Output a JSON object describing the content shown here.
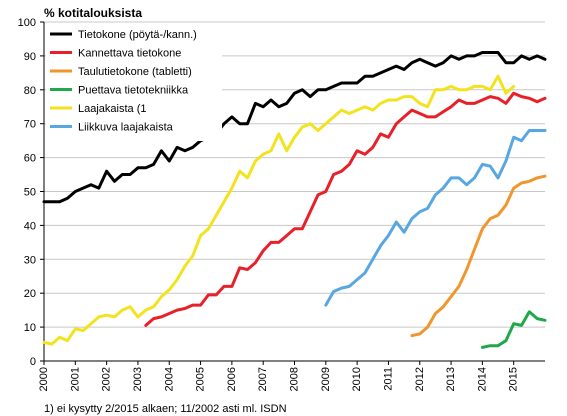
{
  "chart_data": {
    "type": "line",
    "title": "",
    "ylabel": "% kotitalouksista",
    "xlabel": "",
    "ylim": [
      0,
      100
    ],
    "yticks": [
      0,
      10,
      20,
      30,
      40,
      50,
      60,
      70,
      80,
      90,
      100
    ],
    "xlim": [
      2000,
      2016
    ],
    "xticks": [
      "2000",
      "2001",
      "2002",
      "2003",
      "2004",
      "2005",
      "2006",
      "2007",
      "2008",
      "2009",
      "2010",
      "2011",
      "2012",
      "2013",
      "2014",
      "2015"
    ],
    "grid": "horizontal",
    "legend_position": "top-left",
    "footnote": "1) ei kysytty 2/2015 alkaen; 11/2002 asti ml. ISDN",
    "series": [
      {
        "name": "Tietokone (pöytä-/kann.)",
        "color": "#000000",
        "x": [
          2000.0,
          2000.25,
          2000.5,
          2000.75,
          2001.0,
          2001.25,
          2001.5,
          2001.75,
          2002.0,
          2002.25,
          2002.5,
          2002.75,
          2003.0,
          2003.25,
          2003.5,
          2003.75,
          2004.0,
          2004.25,
          2004.5,
          2004.75,
          2005.0,
          2005.25,
          2005.5,
          2005.75,
          2006.0,
          2006.25,
          2006.5,
          2006.75,
          2007.0,
          2007.25,
          2007.5,
          2007.75,
          2008.0,
          2008.25,
          2008.5,
          2008.75,
          2009.0,
          2009.25,
          2009.5,
          2009.75,
          2010.0,
          2010.25,
          2010.5,
          2010.75,
          2011.0,
          2011.25,
          2011.5,
          2011.75,
          2012.0,
          2012.25,
          2012.5,
          2012.75,
          2013.0,
          2013.25,
          2013.5,
          2013.75,
          2014.0,
          2014.25,
          2014.5,
          2014.75,
          2015.0,
          2015.25,
          2015.5,
          2015.75,
          2016.0
        ],
        "y": [
          47,
          47,
          47,
          48,
          50,
          51,
          52,
          51,
          56,
          53,
          55,
          55,
          57,
          57,
          58,
          62,
          59,
          63,
          62,
          63,
          65,
          66,
          67,
          70,
          72,
          70,
          70,
          76,
          75,
          77,
          75,
          76,
          79,
          80,
          78,
          80,
          80,
          81,
          82,
          82,
          82,
          84,
          84,
          85,
          86,
          87,
          86,
          88,
          89,
          88,
          87,
          88,
          90,
          89,
          90,
          90,
          91,
          91,
          91,
          88,
          88,
          90,
          89,
          90,
          89
        ]
      },
      {
        "name": "Kannettava tietokone",
        "color": "#e8202a",
        "x": [
          2003.25,
          2003.5,
          2003.75,
          2004.0,
          2004.25,
          2004.5,
          2004.75,
          2005.0,
          2005.25,
          2005.5,
          2005.75,
          2006.0,
          2006.25,
          2006.5,
          2006.75,
          2007.0,
          2007.25,
          2007.5,
          2007.75,
          2008.0,
          2008.25,
          2008.5,
          2008.75,
          2009.0,
          2009.25,
          2009.5,
          2009.75,
          2010.0,
          2010.25,
          2010.5,
          2010.75,
          2011.0,
          2011.25,
          2011.5,
          2011.75,
          2012.0,
          2012.25,
          2012.5,
          2012.75,
          2013.0,
          2013.25,
          2013.5,
          2013.75,
          2014.0,
          2014.25,
          2014.5,
          2014.75,
          2015.0,
          2015.25,
          2015.5,
          2015.75,
          2016.0
        ],
        "y": [
          10.5,
          12.5,
          13,
          14,
          15,
          15.5,
          16.5,
          16.5,
          19.5,
          19.5,
          22,
          22,
          27.5,
          27,
          29,
          32.5,
          35,
          35,
          37,
          39,
          39,
          44,
          49,
          50,
          55,
          56,
          58,
          62,
          61,
          63,
          67,
          66,
          70,
          72,
          74,
          73,
          72,
          72,
          73.5,
          75,
          77,
          76,
          76,
          77,
          78,
          77.5,
          76,
          79,
          78,
          77.5,
          76.5,
          77.5
        ]
      },
      {
        "name": "Taulutietokone (tabletti)",
        "color": "#f0962d",
        "x": [
          2011.75,
          2012.0,
          2012.25,
          2012.5,
          2012.75,
          2013.0,
          2013.25,
          2013.5,
          2013.75,
          2014.0,
          2014.25,
          2014.5,
          2014.75,
          2015.0,
          2015.25,
          2015.5,
          2015.75,
          2016.0
        ],
        "y": [
          7.5,
          8,
          10,
          14,
          16,
          19,
          22,
          27,
          33,
          39,
          42,
          43,
          46,
          51,
          52.5,
          53,
          54,
          54.5
        ]
      },
      {
        "name": "Puettava tietotekniikka",
        "color": "#1fa84a",
        "x": [
          2014.0,
          2014.25,
          2014.5,
          2014.75,
          2015.0,
          2015.25,
          2015.5,
          2015.75,
          2016.0
        ],
        "y": [
          4,
          4.5,
          4.5,
          6,
          11,
          10.5,
          14.5,
          12.5,
          12
        ]
      },
      {
        "name": "Laajakaista (1",
        "color": "#f2e31e",
        "x": [
          2000.0,
          2000.25,
          2000.5,
          2000.75,
          2001.0,
          2001.25,
          2001.5,
          2001.75,
          2002.0,
          2002.25,
          2002.5,
          2002.75,
          2003.0,
          2003.25,
          2003.5,
          2003.75,
          2004.0,
          2004.25,
          2004.5,
          2004.75,
          2005.0,
          2005.25,
          2005.5,
          2005.75,
          2006.0,
          2006.25,
          2006.5,
          2006.75,
          2007.0,
          2007.25,
          2007.5,
          2007.75,
          2008.0,
          2008.25,
          2008.5,
          2008.75,
          2009.0,
          2009.25,
          2009.5,
          2009.75,
          2010.0,
          2010.25,
          2010.5,
          2010.75,
          2011.0,
          2011.25,
          2011.5,
          2011.75,
          2012.0,
          2012.25,
          2012.5,
          2012.75,
          2013.0,
          2013.25,
          2013.5,
          2013.75,
          2014.0,
          2014.25,
          2014.5,
          2014.75,
          2015.0
        ],
        "y": [
          5.5,
          5,
          7,
          6,
          9.5,
          9,
          11,
          13,
          13.5,
          13,
          15,
          16,
          13,
          15,
          16,
          19,
          21,
          24,
          28,
          31,
          37,
          39,
          43,
          47,
          51,
          56,
          54,
          59,
          61,
          62,
          67,
          62,
          66,
          69,
          70,
          68,
          70,
          72,
          74,
          73,
          74,
          75,
          74,
          76,
          77,
          77,
          78,
          78,
          76,
          75,
          80,
          80,
          81,
          80,
          80,
          81,
          81,
          80,
          84,
          79,
          81
        ]
      },
      {
        "name": "Liikkuva laajakaista",
        "color": "#58a7e0",
        "x": [
          2009.0,
          2009.25,
          2009.5,
          2009.75,
          2010.0,
          2010.25,
          2010.5,
          2010.75,
          2011.0,
          2011.25,
          2011.5,
          2011.75,
          2012.0,
          2012.25,
          2012.5,
          2012.75,
          2013.0,
          2013.25,
          2013.5,
          2013.75,
          2014.0,
          2014.25,
          2014.5,
          2014.75,
          2015.0,
          2015.25,
          2015.5,
          2015.75,
          2016.0
        ],
        "y": [
          16.5,
          20.5,
          21.5,
          22,
          24,
          26,
          30,
          34,
          37,
          41,
          38,
          42,
          44,
          45,
          49,
          51,
          54,
          54,
          52,
          54,
          58,
          57.5,
          54,
          59,
          66,
          65,
          68,
          68,
          68
        ]
      }
    ]
  }
}
